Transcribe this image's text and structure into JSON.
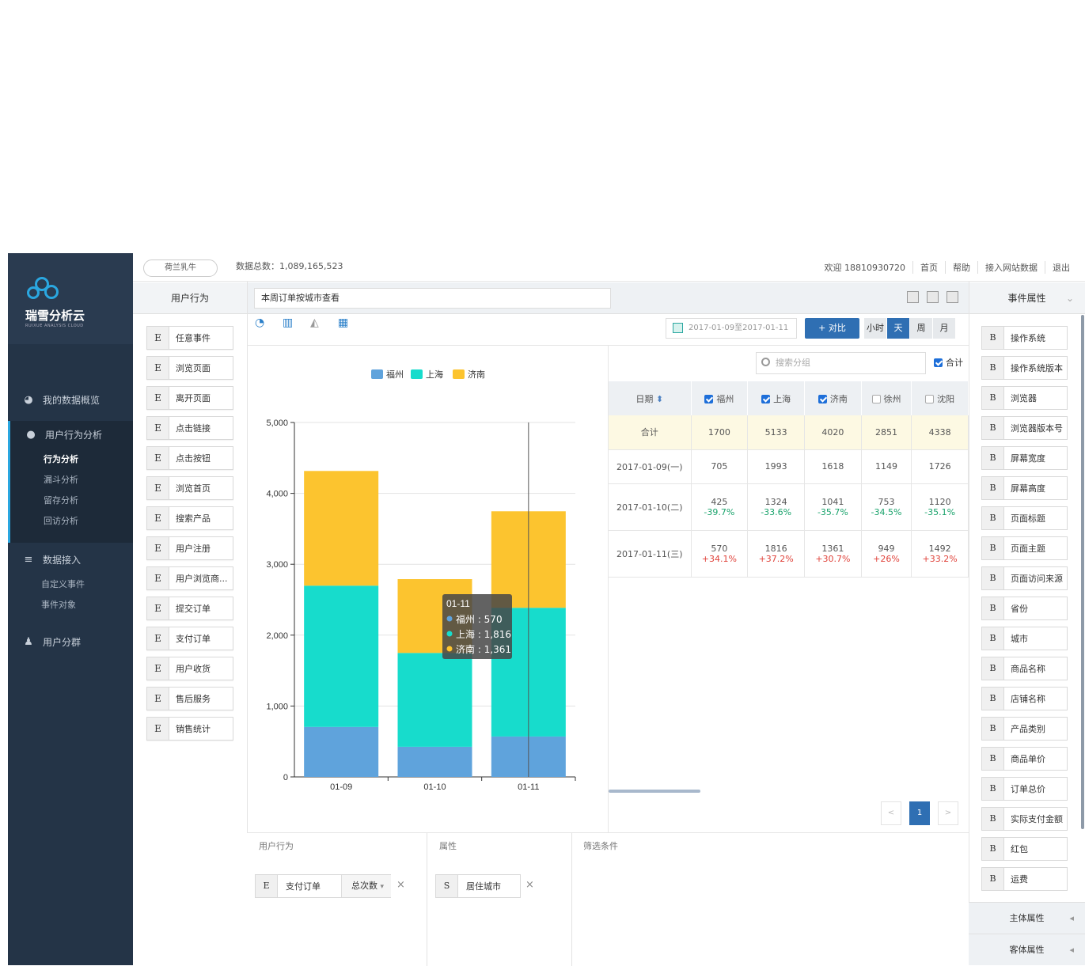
{
  "sidebar": {
    "logo_text": "瑞雪分析云",
    "logo_sub": "RUIXUE ANALYSIS CLOUD",
    "nav": [
      {
        "label": "我的数据概览",
        "icon": "dashboard-icon"
      },
      {
        "label": "用户行为分析",
        "icon": "user-icon"
      },
      {
        "label": "数据接入",
        "icon": "database-icon"
      },
      {
        "label": "用户分群",
        "icon": "users-icon"
      }
    ],
    "behavior_sub": [
      "行为分析",
      "漏斗分析",
      "留存分析",
      "回访分析"
    ],
    "data_sub": [
      "自定义事件",
      "事件对象"
    ]
  },
  "topbar": {
    "brand": "荷兰乳牛",
    "total": "数据总数：1,089,165,523",
    "welcome": "欢迎 18810930720",
    "links": [
      "首页",
      "帮助",
      "接入网站数据",
      "退出"
    ]
  },
  "events": {
    "header": "用户行为",
    "items": [
      {
        "tag": "E",
        "label": "任意事件"
      },
      {
        "tag": "E",
        "label": "浏览页面"
      },
      {
        "tag": "E",
        "label": "离开页面"
      },
      {
        "tag": "E",
        "label": "点击链接"
      },
      {
        "tag": "E",
        "label": "点击按钮"
      },
      {
        "tag": "E",
        "label": "浏览首页"
      },
      {
        "tag": "E",
        "label": "搜索产品"
      },
      {
        "tag": "E",
        "label": "用户注册"
      },
      {
        "tag": "E",
        "label": "用户浏览商..."
      },
      {
        "tag": "E",
        "label": "提交订单"
      },
      {
        "tag": "E",
        "label": "支付订单"
      },
      {
        "tag": "E",
        "label": "用户收货"
      },
      {
        "tag": "E",
        "label": "售后服务"
      },
      {
        "tag": "E",
        "label": "销售统计"
      }
    ]
  },
  "report": {
    "title": "本周订单按城市查看",
    "date_range": "2017-01-09至2017-01-11",
    "compare_label": "+ 对比",
    "granularity": [
      "小时",
      "天",
      "周",
      "月"
    ],
    "granularity_selected": "天"
  },
  "chart_data": {
    "type": "bar",
    "stacked": true,
    "categories": [
      "01-09",
      "01-10",
      "01-11"
    ],
    "series": [
      {
        "name": "福州",
        "values": [
          705,
          425,
          570
        ],
        "color": "#5fa3dc"
      },
      {
        "name": "上海",
        "values": [
          1993,
          1324,
          1816
        ],
        "color": "#17dccc"
      },
      {
        "name": "济南",
        "values": [
          1618,
          1041,
          1361
        ],
        "color": "#fcc42f"
      }
    ],
    "ylim": [
      0,
      5000
    ],
    "yticks": [
      "0",
      "1,000",
      "2,000",
      "3,000",
      "4,000",
      "5,000"
    ],
    "legend": "top-center",
    "tooltip": {
      "title": "01-11",
      "lines": [
        "福州 : 570",
        "上海 : 1,816",
        "济南 : 1,361"
      ]
    }
  },
  "table": {
    "search_placeholder": "搜索分组",
    "sum_label": "合计",
    "headers": [
      "日期",
      "福州",
      "上海",
      "济南",
      "徐州",
      "沈阳"
    ],
    "header_checked": [
      true,
      true,
      true,
      false,
      false
    ],
    "sum_row": [
      "合计",
      "1700",
      "5133",
      "4020",
      "2851",
      "4338"
    ],
    "rows": [
      {
        "date": "2017-01-09(一)",
        "values": [
          "705",
          "1993",
          "1618",
          "1149",
          "1726"
        ],
        "changes": []
      },
      {
        "date": "2017-01-10(二)",
        "values": [
          "425",
          "1324",
          "1041",
          "753",
          "1120"
        ],
        "changes": [
          "-39.7%",
          "-33.6%",
          "-35.7%",
          "-34.5%",
          "-35.1%"
        ]
      },
      {
        "date": "2017-01-11(三)",
        "values": [
          "570",
          "1816",
          "1361",
          "949",
          "1492"
        ],
        "changes": [
          "+34.1%",
          "+37.2%",
          "+30.7%",
          "+26%",
          "+33.2%"
        ]
      }
    ],
    "pager": [
      "<",
      "1",
      ">"
    ]
  },
  "bottom": {
    "behavior_title": "用户行为",
    "attr_title": "属性",
    "filter_title": "筛选条件",
    "behavior_chip": {
      "tag": "E",
      "label": "支付订单",
      "metric": "总次数"
    },
    "attr_chip": {
      "tag": "S",
      "label": "居住城市"
    }
  },
  "right": {
    "header": "事件属性",
    "items": [
      {
        "tag": "B",
        "label": "操作系统"
      },
      {
        "tag": "B",
        "label": "操作系统版本"
      },
      {
        "tag": "B",
        "label": "浏览器"
      },
      {
        "tag": "B",
        "label": "浏览器版本号"
      },
      {
        "tag": "B",
        "label": "屏幕宽度"
      },
      {
        "tag": "B",
        "label": "屏幕高度"
      },
      {
        "tag": "B",
        "label": "页面标题"
      },
      {
        "tag": "B",
        "label": "页面主题"
      },
      {
        "tag": "B",
        "label": "页面访问来源"
      },
      {
        "tag": "B",
        "label": "省份"
      },
      {
        "tag": "B",
        "label": "城市"
      },
      {
        "tag": "B",
        "label": "商品名称"
      },
      {
        "tag": "B",
        "label": "店铺名称"
      },
      {
        "tag": "B",
        "label": "产品类别"
      },
      {
        "tag": "B",
        "label": "商品单价"
      },
      {
        "tag": "B",
        "label": "订单总价"
      },
      {
        "tag": "B",
        "label": "实际支付金额"
      },
      {
        "tag": "B",
        "label": "红包"
      },
      {
        "tag": "B",
        "label": "运费"
      }
    ],
    "footer": [
      "主体属性",
      "客体属性"
    ]
  }
}
